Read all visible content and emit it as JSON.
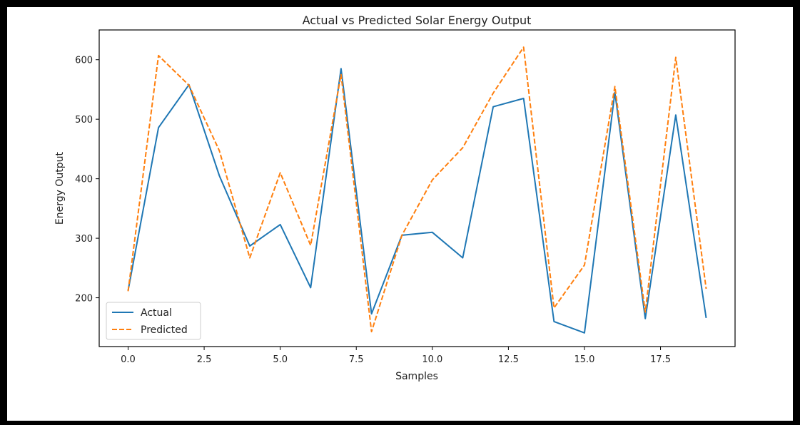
{
  "chart_data": {
    "type": "line",
    "title": "Actual vs Predicted Solar Energy Output",
    "xlabel": "Samples",
    "ylabel": "Energy Output",
    "x": [
      0,
      1,
      2,
      3,
      4,
      5,
      6,
      7,
      8,
      9,
      10,
      11,
      12,
      13,
      14,
      15,
      16,
      17,
      18,
      19
    ],
    "xlim": [
      -0.95,
      19.95
    ],
    "ylim": [
      118,
      650
    ],
    "xticks": [
      0.0,
      2.5,
      5.0,
      7.5,
      10.0,
      12.5,
      15.0,
      17.5
    ],
    "xtick_labels": [
      "0.0",
      "2.5",
      "5.0",
      "7.5",
      "10.0",
      "12.5",
      "15.0",
      "17.5"
    ],
    "yticks": [
      200,
      300,
      400,
      500,
      600
    ],
    "ytick_labels": [
      "200",
      "300",
      "400",
      "500",
      "600"
    ],
    "grid": false,
    "legend_position": "lower-left",
    "series": [
      {
        "name": "Actual",
        "color": "#1f77b4",
        "style": "solid",
        "values": [
          212,
          486,
          558,
          405,
          287,
          323,
          217,
          585,
          173,
          305,
          310,
          267,
          521,
          535,
          160,
          141,
          545,
          165,
          507,
          166
        ]
      },
      {
        "name": "Predicted",
        "color": "#ff7f0e",
        "style": "dashed",
        "values": [
          211,
          607,
          557,
          447,
          267,
          410,
          288,
          575,
          143,
          305,
          398,
          452,
          544,
          621,
          183,
          255,
          555,
          176,
          604,
          215
        ]
      }
    ]
  }
}
